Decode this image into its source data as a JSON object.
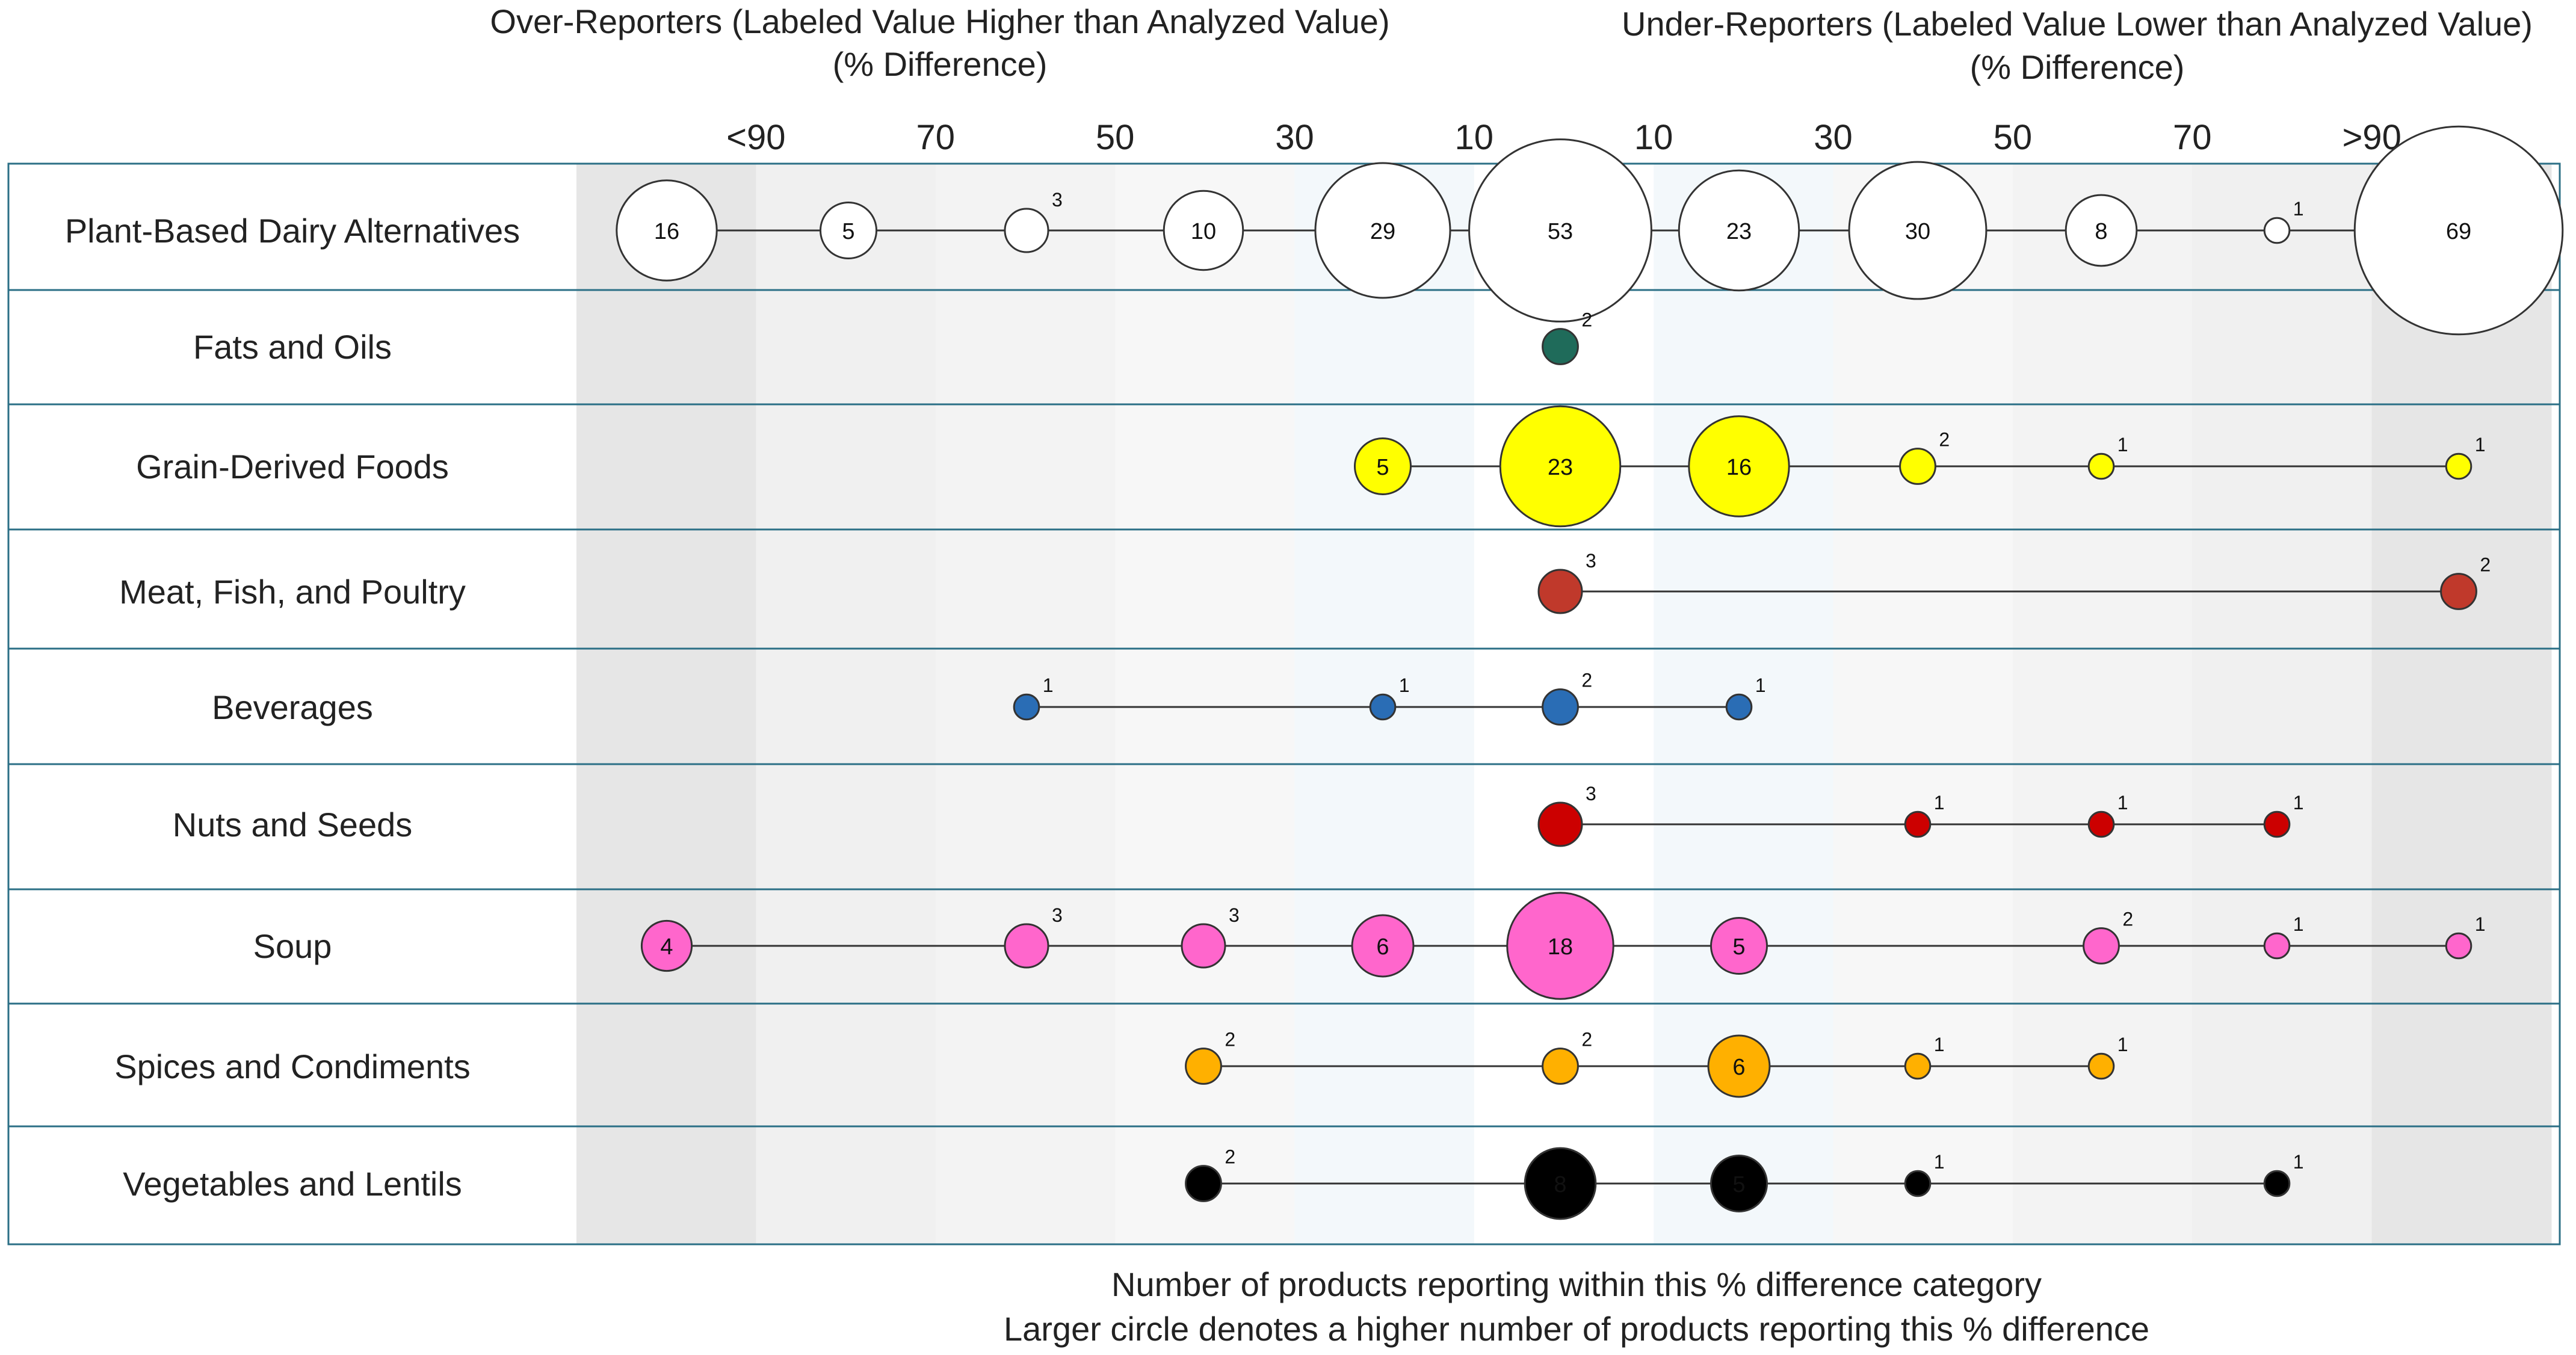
{
  "chart_data": {
    "type": "bubble-dot",
    "header": {
      "left_title": "Over-Reporters (Labeled Value Higher than Analyzed Value)",
      "left_subtitle": "(% Difference)",
      "right_title": "Under-Reporters (Labeled Value Lower than Analyzed Value)",
      "right_subtitle": "(% Difference)"
    },
    "column_ticks": [
      "<90",
      "70",
      "50",
      "30",
      "10",
      "10",
      "30",
      "50",
      "70",
      ">90"
    ],
    "footer": {
      "line1": "Number of products reporting within this % difference category",
      "line2": "Larger circle denotes a higher number of products reporting this % difference"
    },
    "rows": [
      {
        "category": "Plant-Based Dairy Alternatives",
        "color": "#ffffff",
        "counts": [
          16,
          5,
          3,
          10,
          29,
          53,
          23,
          30,
          8,
          1,
          69
        ]
      },
      {
        "category": "Fats and Oils",
        "color": "#1f6b5a",
        "counts": [
          null,
          null,
          null,
          null,
          null,
          2,
          null,
          null,
          null,
          null,
          null
        ]
      },
      {
        "category": "Grain-Derived Foods",
        "color": "#ffff00",
        "counts": [
          null,
          null,
          null,
          null,
          5,
          23,
          16,
          2,
          1,
          null,
          1
        ]
      },
      {
        "category": "Meat, Fish, and Poultry",
        "color": "#c0392b",
        "counts": [
          null,
          null,
          null,
          null,
          null,
          3,
          null,
          null,
          null,
          null,
          2
        ]
      },
      {
        "category": "Beverages",
        "color": "#2a6db5",
        "counts": [
          null,
          null,
          1,
          null,
          1,
          2,
          1,
          null,
          null,
          null,
          null
        ]
      },
      {
        "category": "Nuts and Seeds",
        "color": "#cc0000",
        "counts": [
          null,
          null,
          null,
          null,
          null,
          3,
          null,
          1,
          1,
          1,
          null
        ]
      },
      {
        "category": "Soup",
        "color": "#ff66cc",
        "counts": [
          4,
          null,
          3,
          3,
          6,
          18,
          5,
          null,
          2,
          1,
          1
        ]
      },
      {
        "category": "Spices and Condiments",
        "color": "#ffb000",
        "counts": [
          null,
          null,
          null,
          2,
          null,
          2,
          6,
          1,
          1,
          null,
          null
        ]
      },
      {
        "category": "Vegetables and Lentils",
        "color": "#000000",
        "counts": [
          null,
          null,
          null,
          2,
          null,
          8,
          5,
          1,
          null,
          1,
          null
        ]
      }
    ],
    "scale_note": "counts shown at 11 positions: <90, 80, 60, 40, 20, 0, 20, 40, 60, 80, >90 (% difference)"
  }
}
